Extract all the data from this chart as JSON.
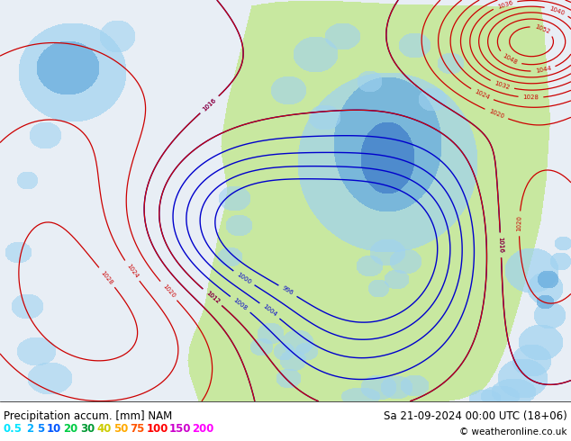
{
  "title_left": "Precipitation accum. [mm] NAM",
  "title_right": "Sa 21-09-2024 00:00 UTC (18+06)",
  "copyright": "© weatheronline.co.uk",
  "legend_values": [
    "0.5",
    "2",
    "5",
    "10",
    "20",
    "30",
    "40",
    "50",
    "75",
    "100",
    "150",
    "200"
  ],
  "legend_colors": [
    "#00e5ff",
    "#00b0ff",
    "#0081ff",
    "#0055ff",
    "#00cc44",
    "#009933",
    "#cccc00",
    "#ffaa00",
    "#ff5500",
    "#ff0000",
    "#cc00cc",
    "#ff00ff"
  ],
  "ocean_color": "#e8eef5",
  "land_color": "#c8e8a0",
  "land_edge_color": "#999988",
  "precip_colors": {
    "light_blue": "#a0d8f0",
    "med_blue": "#70b8e8",
    "dark_blue": "#3090d8"
  },
  "blue_contour_color": "#0000cc",
  "red_contour_color": "#cc0000",
  "fig_width": 6.34,
  "fig_height": 4.9,
  "dpi": 100,
  "bottom_bg": "#ffffff",
  "title_fontsize": 8.5,
  "legend_fontsize": 8.5
}
